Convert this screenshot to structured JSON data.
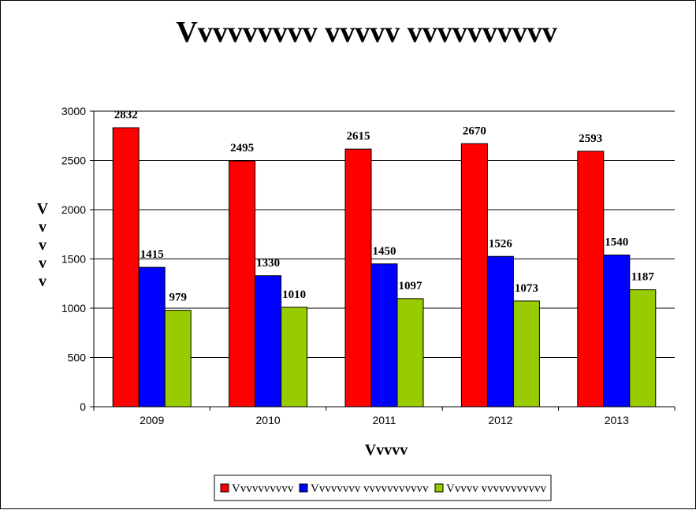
{
  "chart_data": {
    "type": "bar",
    "title": "Vvvvvvvvv vvvvv vvvvvvvvvv",
    "xlabel": "Vvvvv",
    "ylabel": "Vvvvv",
    "categories": [
      "2009",
      "2010",
      "2011",
      "2012",
      "2013"
    ],
    "ylim": [
      0,
      3000
    ],
    "yticks": [
      0,
      500,
      1000,
      1500,
      2000,
      2500,
      3000
    ],
    "grid": true,
    "legend_position": "bottom",
    "series": [
      {
        "name": "Vvvvvvvvvv",
        "color": "#ff0000",
        "values": [
          2832,
          2495,
          2615,
          2670,
          2593
        ]
      },
      {
        "name": "Vvvvvvvv vvvvvvvvvvv",
        "color": "#0000ff",
        "values": [
          1415,
          1330,
          1450,
          1526,
          1540
        ]
      },
      {
        "name": "Vvvvv vvvvvvvvvvv",
        "color": "#99cc00",
        "values": [
          979,
          1010,
          1097,
          1073,
          1187
        ]
      }
    ]
  }
}
